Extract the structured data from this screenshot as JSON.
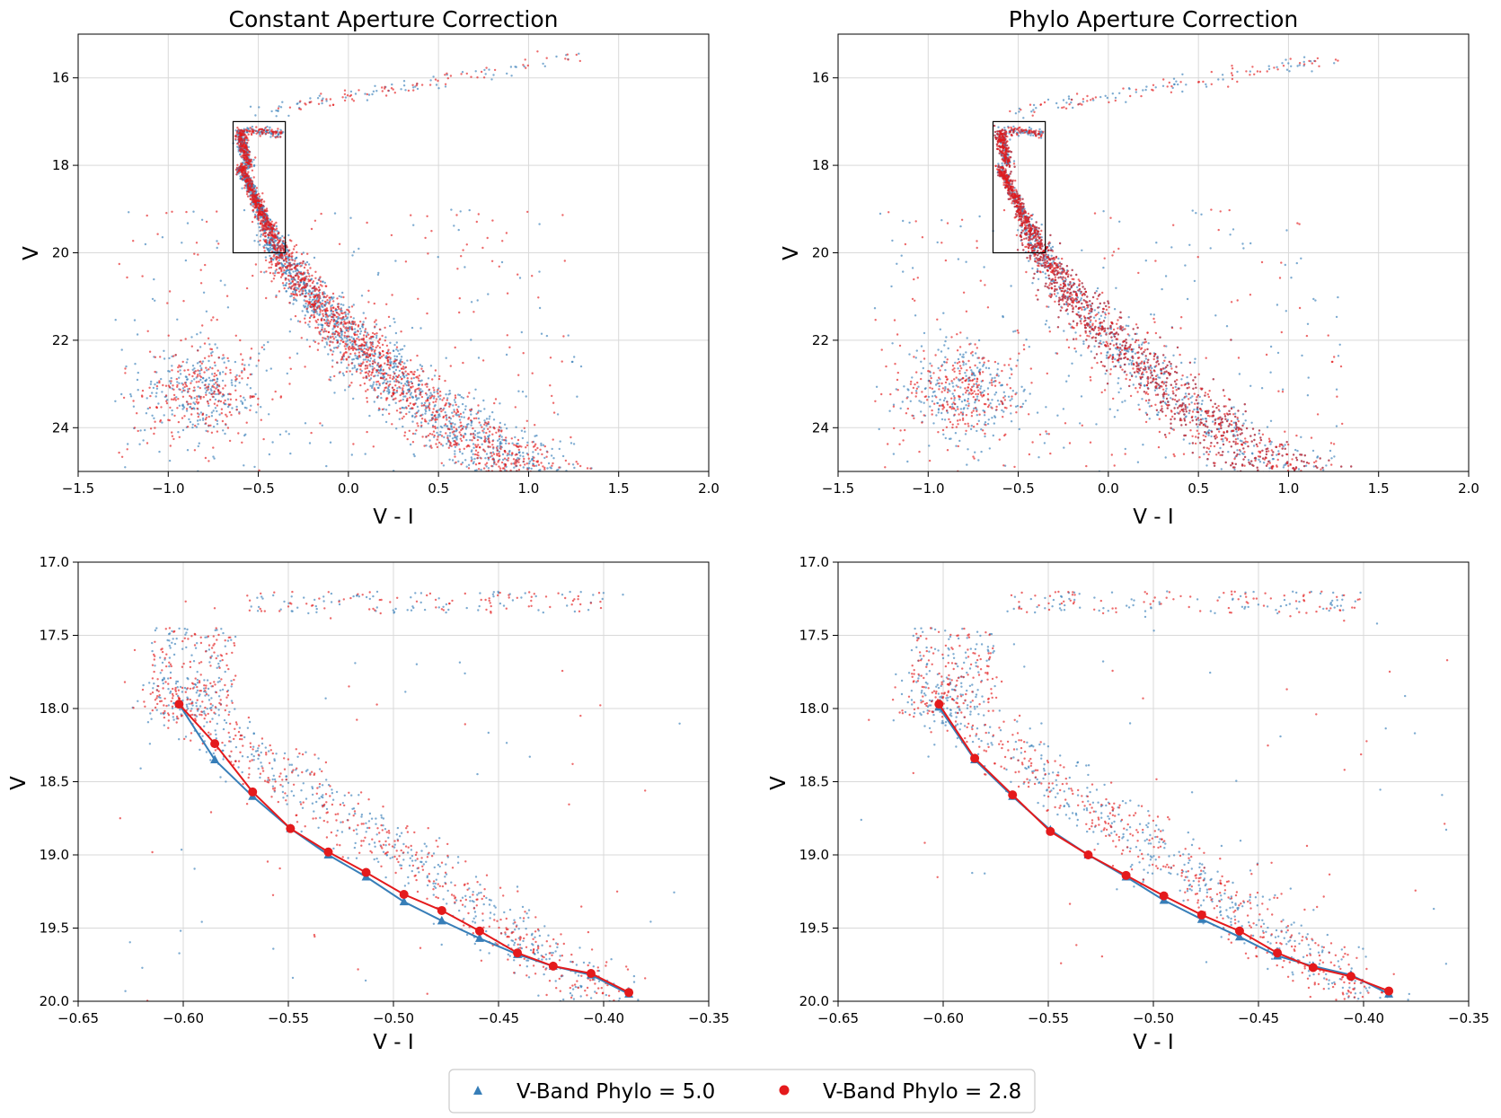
{
  "colors": {
    "series1": "#377eb8",
    "series2": "#e41a1c",
    "grid": "#d9d9d9",
    "axis": "#000000"
  },
  "legend": {
    "entries": [
      {
        "label": "V-Band Phylo = 5.0",
        "marker": "triangle",
        "color": "#377eb8"
      },
      {
        "label": "V-Band Phylo = 2.8",
        "marker": "circle",
        "color": "#e41a1c"
      }
    ],
    "placement": "bottom-center"
  },
  "chart_data": [
    {
      "id": "top-left",
      "type": "scatter",
      "title": "Constant Aperture Correction",
      "xlabel": "V - I",
      "ylabel": "V",
      "xlim": [
        -1.5,
        2.0
      ],
      "ylim": [
        25.0,
        15.0
      ],
      "y_inverted": true,
      "xticks": [
        -1.5,
        -1.0,
        -0.5,
        0.0,
        0.5,
        1.0,
        1.5,
        2.0
      ],
      "xtick_labels": [
        "−1.5",
        "−1.0",
        "−0.5",
        "0.0",
        "0.5",
        "1.0",
        "1.5",
        "2.0"
      ],
      "yticks": [
        16,
        18,
        20,
        22,
        24
      ],
      "ytick_labels": [
        "16",
        "18",
        "20",
        "22",
        "24"
      ],
      "grid": true,
      "zoom_box": {
        "x": [
          -0.64,
          -0.35
        ],
        "y": [
          17.0,
          20.0
        ]
      },
      "series": [
        {
          "name": "V-Band Phylo = 5.0",
          "style": "scatter-cloud",
          "color": "#377eb8"
        },
        {
          "name": "V-Band Phylo = 2.8",
          "style": "scatter-cloud",
          "color": "#e41a1c"
        }
      ]
    },
    {
      "id": "top-right",
      "type": "scatter",
      "title": "Phylo Aperture Correction",
      "xlabel": "V - I",
      "ylabel": "V",
      "xlim": [
        -1.5,
        2.0
      ],
      "ylim": [
        25.0,
        15.0
      ],
      "y_inverted": true,
      "xticks": [
        -1.5,
        -1.0,
        -0.5,
        0.0,
        0.5,
        1.0,
        1.5,
        2.0
      ],
      "xtick_labels": [
        "−1.5",
        "−1.0",
        "−0.5",
        "0.0",
        "0.5",
        "1.0",
        "1.5",
        "2.0"
      ],
      "yticks": [
        16,
        18,
        20,
        22,
        24
      ],
      "ytick_labels": [
        "16",
        "18",
        "20",
        "22",
        "24"
      ],
      "grid": true,
      "zoom_box": {
        "x": [
          -0.64,
          -0.35
        ],
        "y": [
          17.0,
          20.0
        ]
      },
      "series": [
        {
          "name": "V-Band Phylo = 5.0",
          "style": "scatter-cloud",
          "color": "#377eb8"
        },
        {
          "name": "V-Band Phylo = 2.8",
          "style": "scatter-cloud",
          "color": "#e41a1c"
        }
      ]
    },
    {
      "id": "bottom-left",
      "type": "line",
      "title": "",
      "xlabel": "V - I",
      "ylabel": "V",
      "xlim": [
        -0.65,
        -0.35
      ],
      "ylim": [
        20.0,
        17.0
      ],
      "y_inverted": true,
      "xticks": [
        -0.65,
        -0.6,
        -0.55,
        -0.5,
        -0.45,
        -0.4,
        -0.35
      ],
      "xtick_labels": [
        "−0.65",
        "−0.60",
        "−0.55",
        "−0.50",
        "−0.45",
        "−0.40",
        "−0.35"
      ],
      "yticks": [
        17.0,
        17.5,
        18.0,
        18.5,
        19.0,
        19.5,
        20.0
      ],
      "ytick_labels": [
        "17.0",
        "17.5",
        "18.0",
        "18.5",
        "19.0",
        "19.5",
        "20.0"
      ],
      "grid": true,
      "series": [
        {
          "name": "V-Band Phylo = 5.0",
          "marker": "triangle",
          "color": "#377eb8",
          "x": [
            -0.602,
            -0.585,
            -0.567,
            -0.549,
            -0.531,
            -0.513,
            -0.495,
            -0.477,
            -0.459,
            -0.441,
            -0.424,
            -0.406,
            -0.388
          ],
          "y": [
            17.97,
            18.35,
            18.6,
            18.82,
            19.0,
            19.15,
            19.32,
            19.45,
            19.57,
            19.68,
            19.76,
            19.82,
            19.95
          ]
        },
        {
          "name": "V-Band Phylo = 2.8",
          "marker": "circle",
          "color": "#e41a1c",
          "x": [
            -0.602,
            -0.585,
            -0.567,
            -0.549,
            -0.531,
            -0.513,
            -0.495,
            -0.477,
            -0.459,
            -0.441,
            -0.424,
            -0.406,
            -0.388
          ],
          "y": [
            17.97,
            18.24,
            18.57,
            18.82,
            18.98,
            19.12,
            19.27,
            19.38,
            19.52,
            19.67,
            19.76,
            19.81,
            19.94
          ]
        }
      ]
    },
    {
      "id": "bottom-right",
      "type": "line",
      "title": "",
      "xlabel": "V - I",
      "ylabel": "V",
      "xlim": [
        -0.65,
        -0.35
      ],
      "ylim": [
        20.0,
        17.0
      ],
      "y_inverted": true,
      "xticks": [
        -0.65,
        -0.6,
        -0.55,
        -0.5,
        -0.45,
        -0.4,
        -0.35
      ],
      "xtick_labels": [
        "−0.65",
        "−0.60",
        "−0.55",
        "−0.50",
        "−0.45",
        "−0.40",
        "−0.35"
      ],
      "yticks": [
        17.0,
        17.5,
        18.0,
        18.5,
        19.0,
        19.5,
        20.0
      ],
      "ytick_labels": [
        "17.0",
        "17.5",
        "18.0",
        "18.5",
        "19.0",
        "19.5",
        "20.0"
      ],
      "grid": true,
      "series": [
        {
          "name": "V-Band Phylo = 5.0",
          "marker": "triangle",
          "color": "#377eb8",
          "x": [
            -0.602,
            -0.585,
            -0.567,
            -0.549,
            -0.531,
            -0.513,
            -0.495,
            -0.477,
            -0.459,
            -0.441,
            -0.424,
            -0.406,
            -0.388
          ],
          "y": [
            17.99,
            18.35,
            18.6,
            18.83,
            19.0,
            19.15,
            19.31,
            19.44,
            19.56,
            19.69,
            19.76,
            19.82,
            19.95
          ]
        },
        {
          "name": "V-Band Phylo = 2.8",
          "marker": "circle",
          "color": "#e41a1c",
          "x": [
            -0.602,
            -0.585,
            -0.567,
            -0.549,
            -0.531,
            -0.513,
            -0.495,
            -0.477,
            -0.459,
            -0.441,
            -0.424,
            -0.406,
            -0.388
          ],
          "y": [
            17.97,
            18.34,
            18.59,
            18.84,
            19.0,
            19.14,
            19.28,
            19.41,
            19.52,
            19.67,
            19.77,
            19.83,
            19.93
          ]
        }
      ]
    }
  ]
}
